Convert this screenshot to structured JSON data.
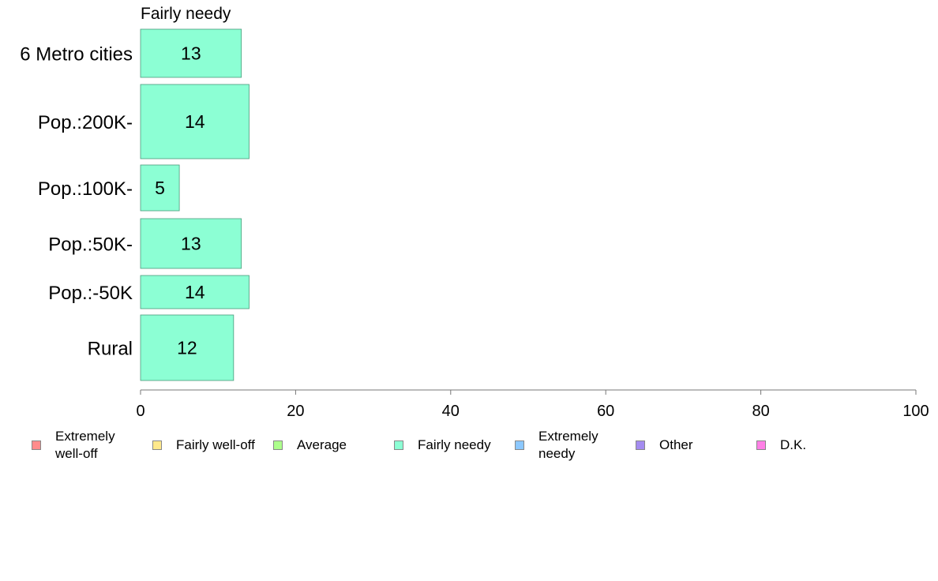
{
  "chart_data": {
    "type": "bar",
    "orientation": "horizontal",
    "panel_title": "Fairly needy",
    "categories": [
      "6 Metro cities",
      "Pop.:200K-",
      "Pop.:100K-",
      "Pop.:50K-",
      "Pop.:-50K",
      "Rural"
    ],
    "series": [
      {
        "name": "Fairly needy",
        "values": [
          13,
          14,
          5,
          13,
          14,
          12
        ],
        "color": "#8cffd4"
      }
    ],
    "data_labels": [
      "13",
      "14",
      "5",
      "13",
      "14",
      "12"
    ],
    "xlim": [
      0,
      100
    ],
    "x_ticks": [
      0,
      20,
      40,
      60,
      80,
      100
    ],
    "x_tick_labels": [
      "0",
      "20",
      "40",
      "60",
      "80",
      "100"
    ],
    "grid": false,
    "legend_position": "bottom",
    "legend": [
      {
        "label": "Extremely\nwell-off",
        "color": "#ff8c8c"
      },
      {
        "label": "Fairly well-off",
        "color": "#ffe98c"
      },
      {
        "label": "Average",
        "color": "#adff8c"
      },
      {
        "label": "Fairly needy",
        "color": "#8cffd4"
      },
      {
        "label": "Extremely\nneedy",
        "color": "#8cc8ff"
      },
      {
        "label": "Other",
        "color": "#a48cf0"
      },
      {
        "label": "D.K.",
        "color": "#ff80e6"
      }
    ]
  }
}
